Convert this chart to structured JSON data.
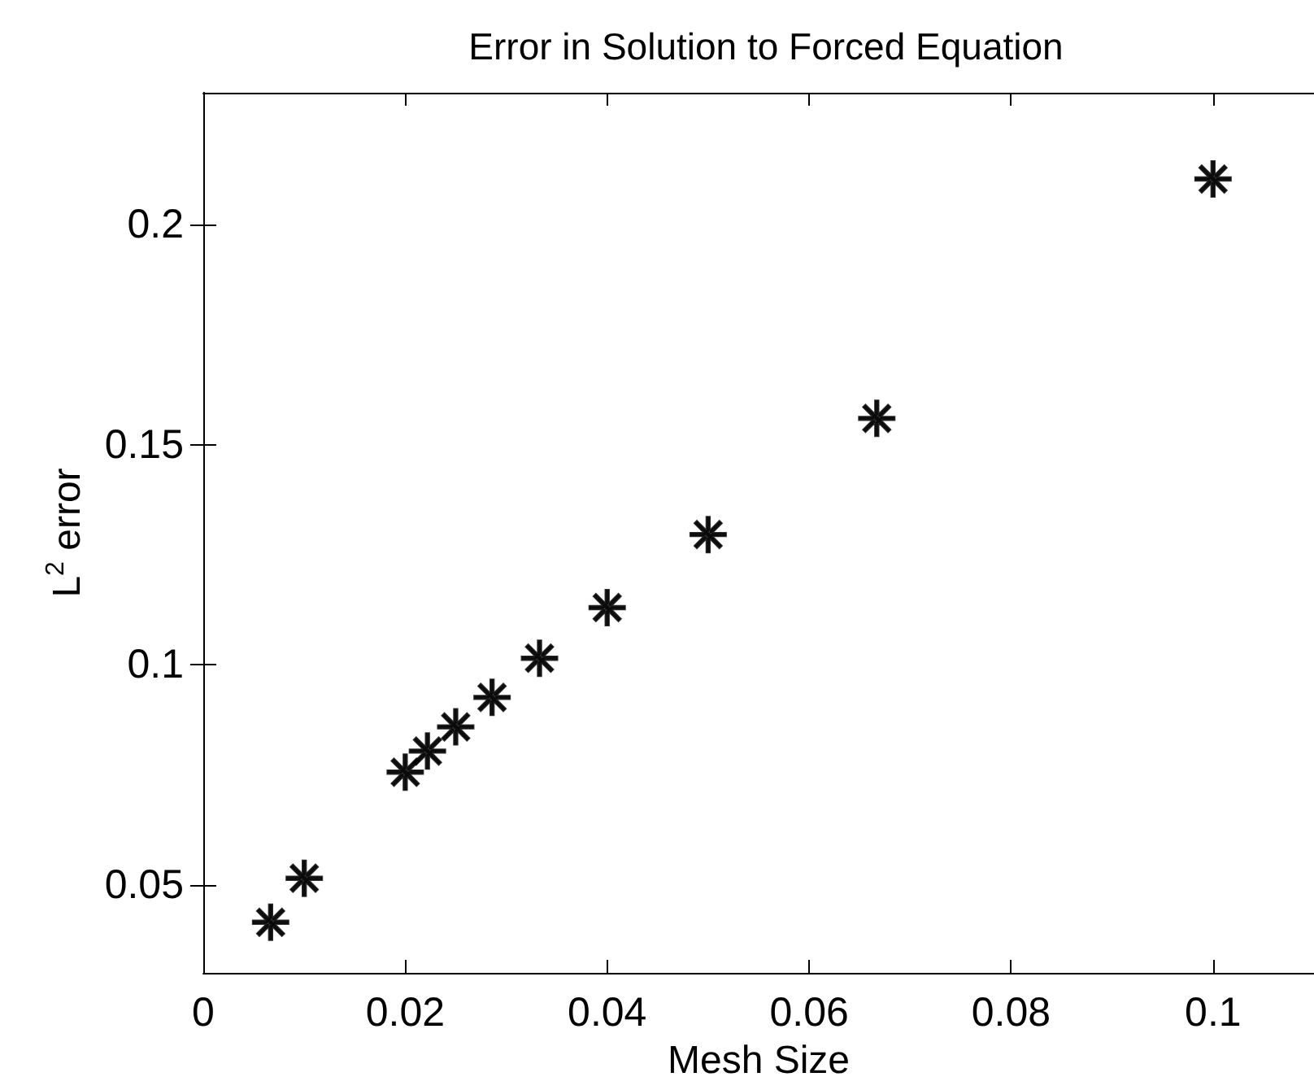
{
  "chart_data": {
    "type": "scatter",
    "title": "Error in Solution to Forced Equation",
    "xlabel": "Mesh Size",
    "ylabel": "L$^{2}$ error",
    "x": [
      0.00667,
      0.01,
      0.02,
      0.0222,
      0.025,
      0.0286,
      0.0333,
      0.04,
      0.05,
      0.0667,
      0.1
    ],
    "series": [
      {
        "color": "#000000",
        "values": [
          0.0415,
          0.0515,
          0.0756,
          0.0804,
          0.0859,
          0.0926,
          0.1015,
          0.113,
          0.1296,
          0.156,
          0.2104
        ]
      }
    ],
    "xlim": [
      0,
      0.11
    ],
    "xticks": [
      0,
      0.02,
      0.04,
      0.06,
      0.08,
      0.1
    ],
    "ylim": [
      0.03,
      0.23
    ],
    "yticks": [
      0.05,
      0.1,
      0.15,
      0.2
    ],
    "marker": "cross",
    "grid": false
  }
}
